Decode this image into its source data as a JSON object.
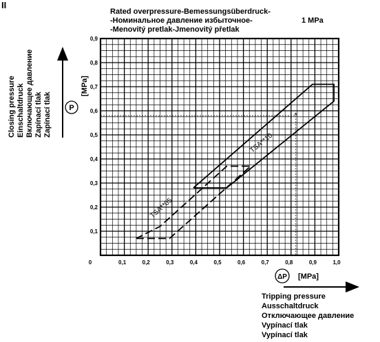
{
  "figure_marker": "II",
  "header": {
    "lines": [
      "Rated overpressure-Bemessungsüberdruck-",
      "-Номинальное давление избыточное-",
      "-Menovitý pretlak-Jmenovitý přetlak"
    ],
    "value": "1 MPa"
  },
  "y_axis": {
    "symbol": "P",
    "unit": "[MPa]",
    "labels": [
      "Closing pressure",
      "Einschaltdruck",
      "Включающее давление",
      "Zapínací tlak",
      "Zapínací tlak"
    ]
  },
  "x_axis": {
    "symbol": "ΔP",
    "unit": "[MPa]",
    "labels": [
      "Tripping pressure",
      "Ausschaltdruck",
      "Отключающее давление",
      "Vypínací tlak",
      "Vypínací tlak"
    ]
  },
  "chart_data": {
    "type": "area",
    "xlim": [
      0,
      1.0
    ],
    "ylim": [
      0,
      0.9
    ],
    "grid": true,
    "x_ticks": [
      "0",
      "0,1",
      "0,2",
      "0,3",
      "0,4",
      "0,5",
      "0,6",
      "0,7",
      "0,8",
      "0,9",
      "1,0"
    ],
    "y_ticks": [
      "0,1",
      "0,2",
      "0,3",
      "0,4",
      "0,5",
      "0,6",
      "0,7",
      "0,8",
      "0,9"
    ],
    "series": [
      {
        "name": "TSA**05",
        "line_style": "dashed",
        "points": [
          [
            0.15,
            0.07
          ],
          [
            0.29,
            0.07
          ],
          [
            0.63,
            0.37
          ],
          [
            0.6,
            0.37
          ],
          [
            0.53,
            0.37
          ],
          [
            0.25,
            0.12
          ],
          [
            0.15,
            0.07
          ]
        ]
      },
      {
        "name": "TSA**10",
        "line_style": "solid",
        "points": [
          [
            0.39,
            0.28
          ],
          [
            0.53,
            0.28
          ],
          [
            0.98,
            0.64
          ],
          [
            0.98,
            0.71
          ],
          [
            0.89,
            0.71
          ],
          [
            0.39,
            0.28
          ]
        ]
      }
    ],
    "reference": {
      "x": 0.82,
      "y": 0.58,
      "marker": "*"
    }
  }
}
